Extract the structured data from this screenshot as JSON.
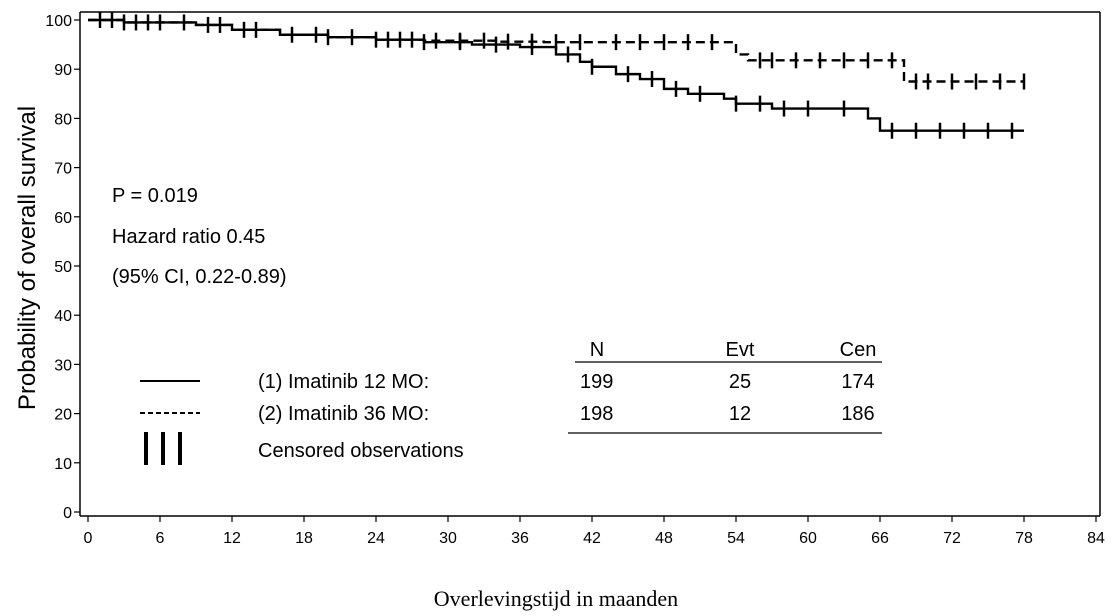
{
  "chart_data": {
    "type": "line",
    "subtype": "kaplan-meier",
    "xlabel": "Overlevingstijd in maanden",
    "ylabel": "Probability of overall survival",
    "xlim": [
      0,
      84
    ],
    "ylim": [
      0,
      100
    ],
    "xticks": [
      0,
      6,
      12,
      18,
      24,
      30,
      36,
      42,
      48,
      54,
      60,
      66,
      72,
      78,
      84
    ],
    "yticks": [
      0,
      10,
      20,
      30,
      40,
      50,
      60,
      70,
      80,
      90,
      100
    ],
    "grid": false,
    "annotation": {
      "p_value": "P = 0.019",
      "hazard_ratio": "Hazard ratio 0.45",
      "ci": "(95% CI, 0.22-0.89)"
    },
    "legend": {
      "placement": "bottom-left",
      "headers": {
        "n": "N",
        "evt": "Evt",
        "cen": "Cen"
      },
      "censored_label": "Censored observations",
      "colors": {
        "line": "#000000"
      }
    },
    "series": [
      {
        "name": "(1) Imatinib 12 MO:",
        "style": "solid",
        "n": "199",
        "evt": "25",
        "cen": "174",
        "x": [
          0,
          3,
          9,
          12,
          16,
          20,
          24,
          28,
          32,
          36,
          39,
          41,
          42,
          44,
          46,
          48,
          50,
          53,
          54,
          57,
          65,
          66,
          78
        ],
        "y": [
          100,
          99.5,
          99,
          98,
          97,
          96.5,
          96,
          95.5,
          95,
          94.5,
          93,
          91.5,
          90.5,
          89,
          88,
          86,
          85,
          84,
          83,
          82,
          80,
          77.5,
          77.5
        ],
        "censor_x": [
          1,
          3,
          4,
          6,
          10,
          13,
          17,
          20,
          24,
          26,
          28,
          31,
          34,
          37,
          40,
          42,
          45,
          47,
          49,
          51,
          54,
          56,
          58,
          60,
          63,
          67,
          69,
          71,
          73,
          75,
          77
        ]
      },
      {
        "name": "(2) Imatinib 36 MO:",
        "style": "dashed",
        "n": "198",
        "evt": "12",
        "cen": "186",
        "x": [
          0,
          3,
          9,
          12,
          16,
          20,
          24,
          28,
          34,
          38,
          43,
          51,
          54,
          55,
          68,
          78
        ],
        "y": [
          100,
          99.5,
          99,
          98,
          97,
          96.5,
          96,
          95.8,
          95.6,
          95.5,
          95.5,
          95.5,
          93,
          91.8,
          87.5,
          87.5
        ],
        "censor_x": [
          2,
          5,
          8,
          11,
          14,
          19,
          22,
          25,
          27,
          29,
          31,
          33,
          35,
          37,
          39,
          41,
          44,
          46,
          48,
          50,
          52,
          56,
          57,
          59,
          61,
          63,
          65,
          67,
          69,
          70,
          72,
          74,
          76,
          78
        ]
      }
    ]
  }
}
